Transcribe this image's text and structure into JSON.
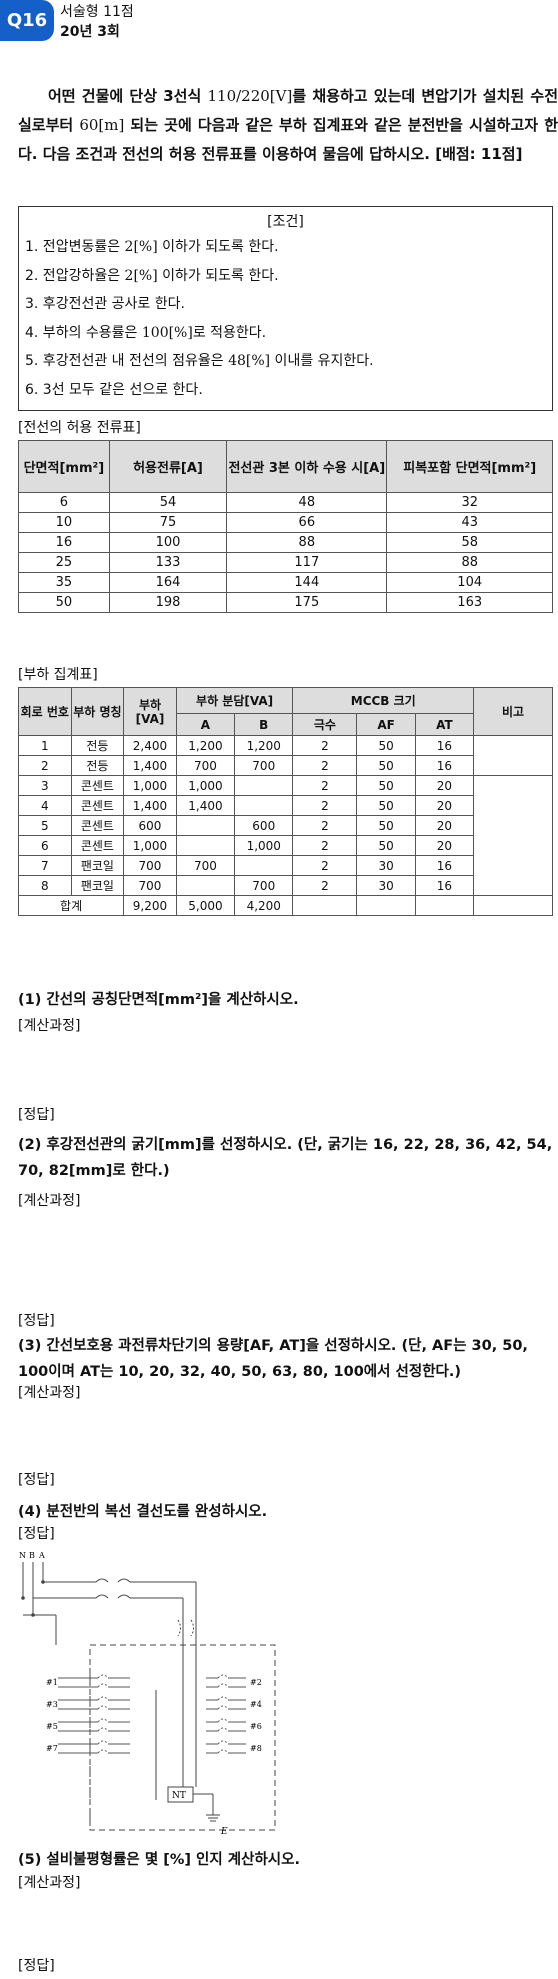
{
  "header": {
    "badge": "Q16",
    "type": "서술형 11점",
    "session": "20년 3회"
  },
  "intro": {
    "p1": "어떤 건물에 단상 3선식 ",
    "volt": "110/220[V]",
    "p2": "를 채용하고 있는데 변압기가 설치된 수전실로부터 ",
    "dist": "60[m]",
    "p3": " 되는 곳에 다음과 같은 부하 집계표와 같은 분전반을 시설하고자 한다. 다음 조건과 전선의 허용 전류표를 이용하여 물음에 답하시오.",
    "points": "[배점: 11점]"
  },
  "conditions": {
    "title": "[조건]",
    "items": [
      {
        "a": "1. 전압변동률은 ",
        "v": "2[%]",
        "b": " 이하가 되도록 한다."
      },
      {
        "a": "2. 전압강하율은 ",
        "v": "2[%]",
        "b": " 이하가 되도록 한다."
      },
      {
        "a": "3. 후강전선관 공사로 한다.",
        "v": "",
        "b": ""
      },
      {
        "a": "4. 부하의 수용률은 ",
        "v": "100[%]",
        "b": "로 적용한다."
      },
      {
        "a": "5. 후강전선관 내 전선의 점유율은 ",
        "v": "48[%]",
        "b": " 이내를 유지한다."
      },
      {
        "a": "6. 3선 모두 같은 선으로 한다.",
        "v": "",
        "b": ""
      }
    ]
  },
  "table1": {
    "caption": "[전선의 허용 전류표]",
    "headers": [
      "단면적[mm²]",
      "허용전류[A]",
      "전선관 3본 이하 수용 시[A]",
      "피복포함 단면적[mm²]"
    ],
    "rows": [
      [
        "6",
        "54",
        "48",
        "32"
      ],
      [
        "10",
        "75",
        "66",
        "43"
      ],
      [
        "16",
        "100",
        "88",
        "58"
      ],
      [
        "25",
        "133",
        "117",
        "88"
      ],
      [
        "35",
        "164",
        "144",
        "104"
      ],
      [
        "50",
        "198",
        "175",
        "163"
      ]
    ]
  },
  "table2": {
    "caption": "[부하 집계표]",
    "h_circuit": "회로 번호",
    "h_name": "부하 명칭",
    "h_load": "부하 [VA]",
    "h_share": "부하 분담[VA]",
    "h_mccb": "MCCB 크기",
    "h_note": "비고",
    "h_a": "A",
    "h_b": "B",
    "h_poles": "극수",
    "h_af": "AF",
    "h_at": "AT",
    "rows": [
      [
        "1",
        "전등",
        "2,400",
        "1,200",
        "1,200",
        "2",
        "50",
        "16"
      ],
      [
        "2",
        "전등",
        "1,400",
        "700",
        "700",
        "2",
        "50",
        "16"
      ],
      [
        "3",
        "콘센트",
        "1,000",
        "1,000",
        "",
        "2",
        "50",
        "20"
      ],
      [
        "4",
        "콘센트",
        "1,400",
        "1,400",
        "",
        "2",
        "50",
        "20"
      ],
      [
        "5",
        "콘센트",
        "600",
        "",
        "600",
        "2",
        "50",
        "20"
      ],
      [
        "6",
        "콘센트",
        "1,000",
        "",
        "1,000",
        "2",
        "50",
        "20"
      ],
      [
        "7",
        "팬코일",
        "700",
        "700",
        "",
        "2",
        "30",
        "16"
      ],
      [
        "8",
        "팬코일",
        "700",
        "",
        "700",
        "2",
        "30",
        "16"
      ]
    ],
    "total": [
      "합계",
      "9,200",
      "5,000",
      "4,200"
    ]
  },
  "questions": {
    "q1": "(1) 간선의 공칭단면적[mm²]을 계산하시오.",
    "q2": "(2) 후강전선관의 굵기[mm]를 선정하시오. (단, 굵기는 16, 22, 28, 36, 42, 54, 70, 82[mm]로 한다.)",
    "q3": "(3) 간선보호용 과전류차단기의 용량[AF, AT]을 선정하시오. (단, AF는 30, 50, 100이며 AT는 10, 20, 32, 40, 50, 63, 80, 100에서 선정한다.)",
    "q4": "(4) 분전반의 복선 결선도를 완성하시오.",
    "q5": "(5) 설비불평형률은 몇 [%] 인지 계산하시오.",
    "calc_label": "[계산과정]",
    "answer_label": "[정답]"
  },
  "diagram": {
    "phase_labels": [
      "N",
      "B",
      "A"
    ],
    "left_circuits": [
      "#1",
      "#3",
      "#5",
      "#7"
    ],
    "right_circuits": [
      "#2",
      "#4",
      "#6",
      "#8"
    ],
    "nt_label": "NT",
    "earth_label": "E"
  }
}
